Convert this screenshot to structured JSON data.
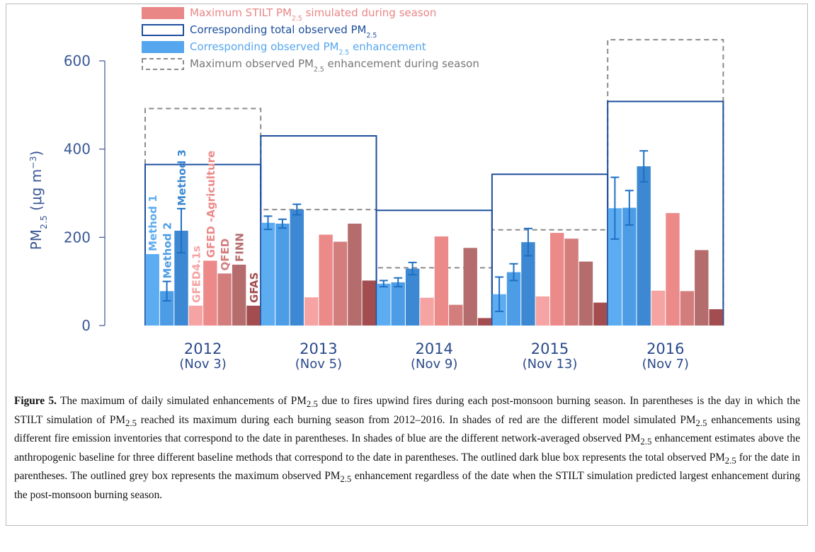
{
  "chart_data": {
    "type": "bar",
    "ylabel": "PM2.5 (μg m−3)",
    "categories": [
      "2012",
      "2013",
      "2014",
      "2015",
      "2016"
    ],
    "category_notes": [
      "(Nov 3)",
      "(Nov 5)",
      "(Nov 9)",
      "(Nov 13)",
      "(Nov 7)"
    ],
    "ylim": [
      0,
      600
    ],
    "yticks": [
      0,
      200,
      400,
      600
    ],
    "series": [
      {
        "name": "Method 1",
        "color": "#5cacf2",
        "values": [
          162,
          233,
          95,
          71,
          266
        ],
        "errors": [
          null,
          15,
          7,
          39,
          70
        ]
      },
      {
        "name": "Method 2",
        "color": "#4c9de6",
        "values": [
          78,
          231,
          98,
          121,
          267
        ],
        "errors": [
          22,
          10,
          10,
          19,
          39
        ]
      },
      {
        "name": "Method 3",
        "color": "#3d88d2",
        "values": [
          215,
          263,
          129,
          189,
          361
        ],
        "errors": [
          50,
          12,
          14,
          31,
          35
        ]
      },
      {
        "name": "GFED4.1s",
        "color": "#f5a3a3",
        "values": [
          45,
          64,
          63,
          66,
          79
        ]
      },
      {
        "name": "GFED -Agriculture",
        "color": "#ec8a8a",
        "values": [
          147,
          206,
          202,
          210,
          255
        ]
      },
      {
        "name": "QFED",
        "color": "#d37d7d",
        "values": [
          118,
          190,
          47,
          197,
          78
        ]
      },
      {
        "name": "FINN",
        "color": "#b56c6c",
        "values": [
          138,
          231,
          176,
          145,
          171
        ]
      },
      {
        "name": "GFAS",
        "color": "#a34d50",
        "values": [
          45,
          102,
          17,
          52,
          37
        ]
      }
    ],
    "outlines": [
      {
        "name": "Corresponding total observed PM2.5",
        "color": "#1d4f9c",
        "style": "solid",
        "values": [
          365,
          430,
          261,
          343,
          508
        ]
      },
      {
        "name": "Maximum observed PM2.5 enhancement during season",
        "color": "#8c8c8c",
        "style": "dashed",
        "values": [
          492,
          263,
          131,
          217,
          648
        ]
      }
    ],
    "legend": [
      {
        "label": "Maximum STILT PM2.5 simulated during season",
        "color": "#e98686"
      },
      {
        "label": "Corresponding observed PM2.5 enhancement",
        "color": "#55a6ee"
      }
    ]
  },
  "caption": {
    "label": "Figure 5.",
    "text": "The maximum of daily simulated enhancements of PM2.5 due to fires upwind fires during each post-monsoon burning season. In parentheses is the day in which the STILT simulation of PM2.5 reached its maximum during each burning season from 2012–2016. In shades of red are the different model simulated PM2.5 enhancements using different fire emission inventories that correspond to the date in parentheses. In shades of blue are the different network-averaged observed PM2.5 enhancement estimates above the anthropogenic baseline for three different baseline methods that correspond to the date in parentheses. The outlined dark blue box represents the total observed PM2.5 for the date in parentheses. The outlined grey box represents the maximum observed PM2.5 enhancement regardless of the date when the STILT simulation predicted largest enhancement during the post-monsoon burning season."
  }
}
